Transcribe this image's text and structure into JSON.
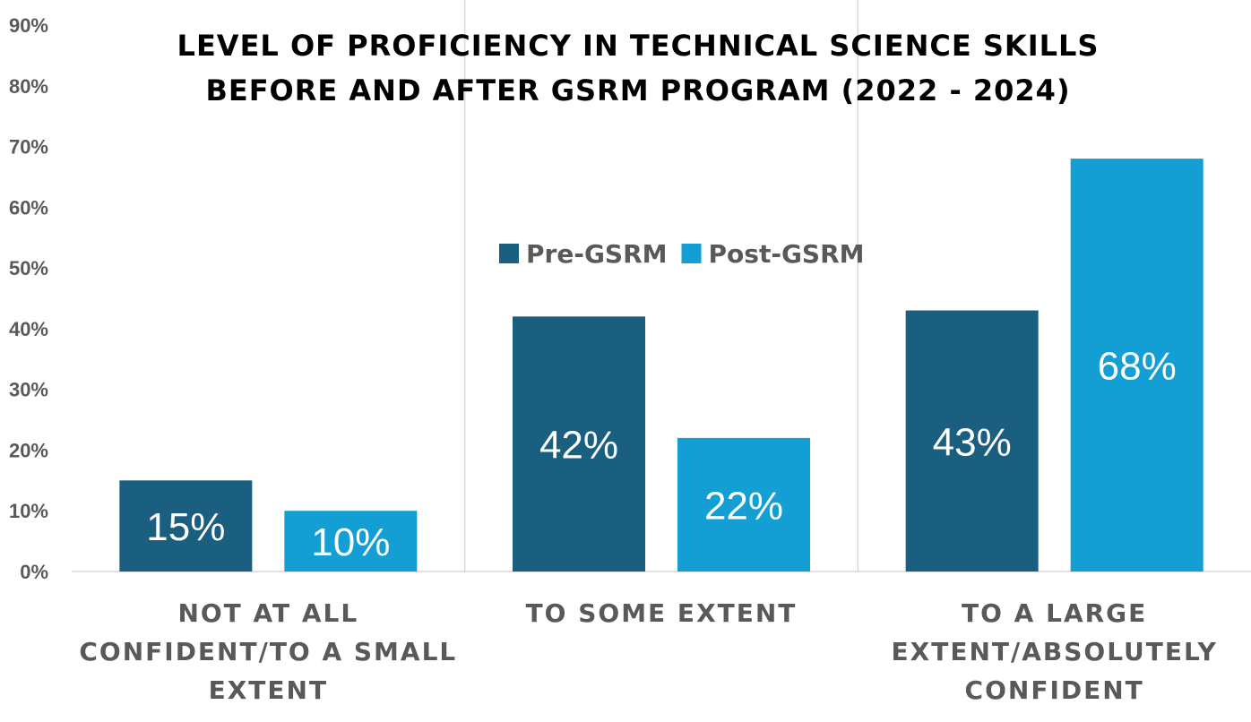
{
  "chart_data": {
    "type": "bar",
    "title_lines": [
      "LEVEL OF PROFICIENCY IN TECHNICAL SCIENCE SKILLS",
      "BEFORE AND AFTER GSRM PROGRAM (2022 - 2024)"
    ],
    "categories": [
      [
        "NOT AT ALL",
        "CONFIDENT/TO A SMALL",
        "EXTENT"
      ],
      [
        "TO SOME EXTENT"
      ],
      [
        "TO A LARGE",
        "EXTENT/ABSOLUTELY",
        "CONFIDENT"
      ]
    ],
    "series": [
      {
        "name": "Pre-GSRM",
        "values": [
          15,
          42,
          43
        ],
        "labels": [
          "15%",
          "42%",
          "43%"
        ],
        "color": "#1a5f80"
      },
      {
        "name": "Post-GSRM",
        "values": [
          10,
          22,
          68
        ],
        "labels": [
          "10%",
          "22%",
          "68%"
        ],
        "color": "#139fd4"
      }
    ],
    "ylim": [
      0,
      90
    ],
    "yticks": [
      "0%",
      "10%",
      "20%",
      "30%",
      "40%",
      "50%",
      "60%",
      "70%",
      "80%",
      "90%"
    ],
    "legend_position": "center",
    "grid": false
  }
}
